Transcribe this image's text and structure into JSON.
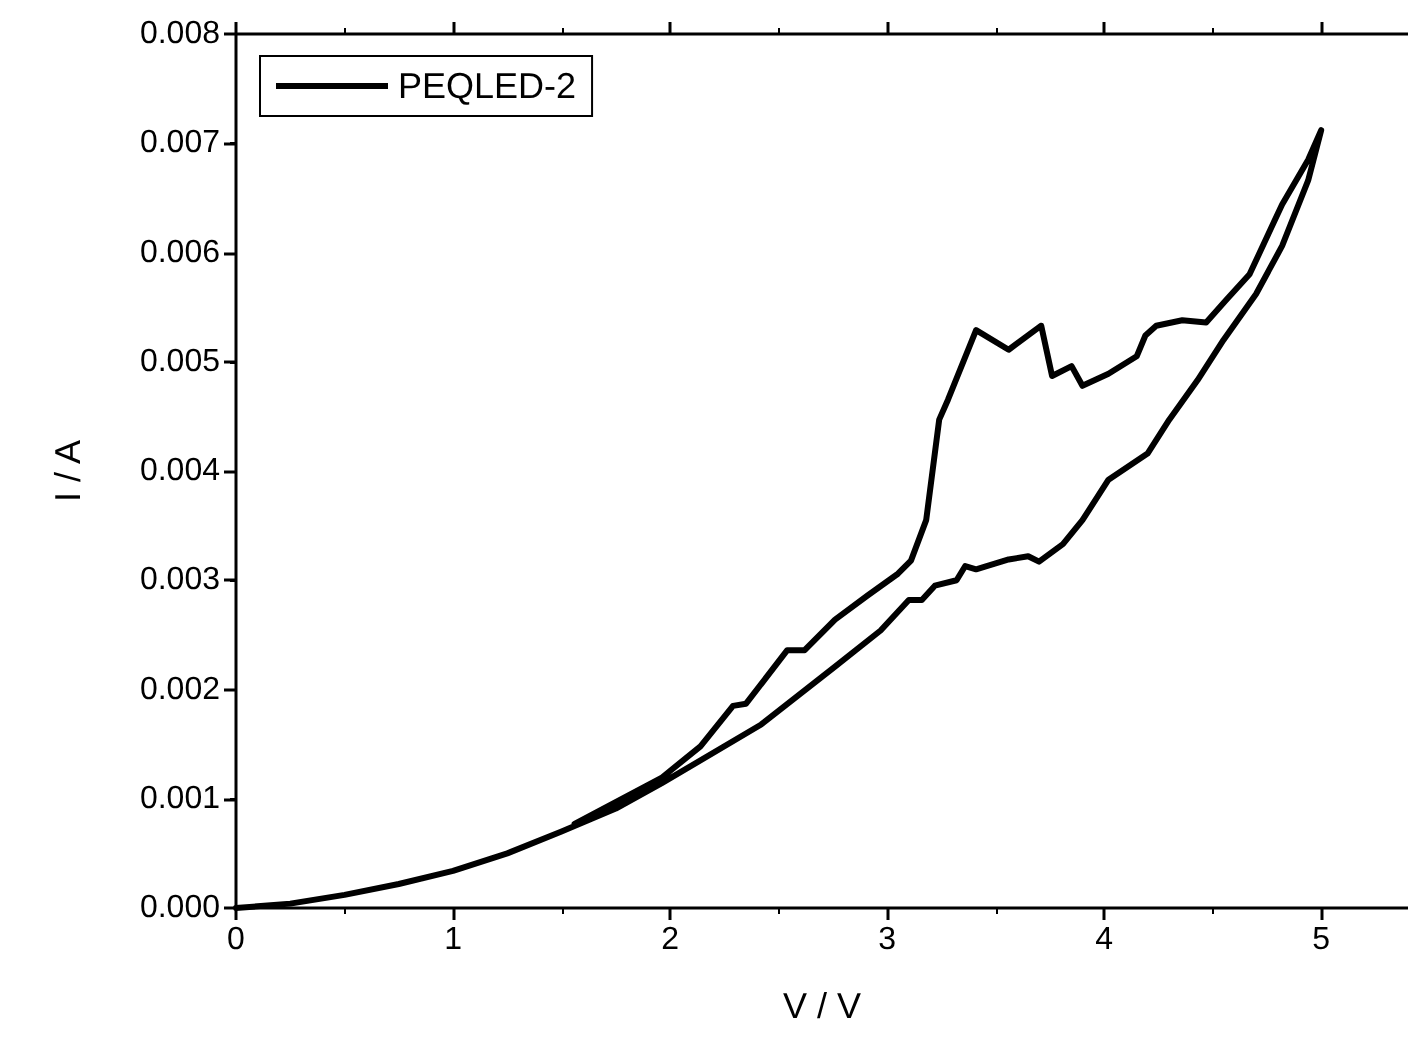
{
  "chart_data": {
    "type": "line",
    "xlabel": "V / V",
    "ylabel": "I / A",
    "xlim": [
      0,
      5.4
    ],
    "xticks": [
      0,
      1,
      2,
      3,
      4,
      5
    ],
    "ylim": [
      0,
      0.008
    ],
    "yticks": [
      {
        "value": 0,
        "label": "0.000"
      },
      {
        "value": 0.001,
        "label": "0.001"
      },
      {
        "value": 0.002,
        "label": "0.002"
      },
      {
        "value": 0.003,
        "label": "0.003"
      },
      {
        "value": 0.004,
        "label": "0.004"
      },
      {
        "value": 0.005,
        "label": "0.005"
      },
      {
        "value": 0.006,
        "label": "0.006"
      },
      {
        "value": 0.007,
        "label": "0.007"
      },
      {
        "value": 0.008,
        "label": "0.008"
      }
    ],
    "grid": false,
    "legend": "top left",
    "marker": "none",
    "line_style": "solid",
    "series": [
      {
        "name": "PEQLED-2",
        "color": "#000000",
        "x": [
          0,
          0.25,
          0.5,
          0.75,
          1,
          1.25,
          1.5,
          1.75,
          1.96,
          2.42,
          2.76,
          2.97,
          3.1,
          3.16,
          3.22,
          3.32,
          3.36,
          3.41,
          3.56,
          3.65,
          3.7,
          3.81,
          3.9,
          4.02,
          4.2,
          4.3,
          4.43,
          4.55,
          4.7,
          4.82,
          4.94,
          5.0,
          4.94,
          4.82,
          4.67,
          4.56,
          4.47,
          4.36,
          4.24,
          4.19,
          4.15,
          4.02,
          3.9,
          3.85,
          3.76,
          3.71,
          3.56,
          3.41,
          3.28,
          3.24,
          3.18,
          3.11,
          3.05,
          2.91,
          2.76,
          2.62,
          2.54,
          2.35,
          2.29,
          2.14,
          1.96,
          1.56
        ],
        "values": [
          0,
          4e-05,
          0.00012,
          0.00022,
          0.00034,
          0.0005,
          0.0007,
          0.00091,
          0.00114,
          0.00168,
          0.00221,
          0.00254,
          0.00282,
          0.00282,
          0.00295,
          0.003,
          0.00313,
          0.0031,
          0.00319,
          0.00322,
          0.00317,
          0.00333,
          0.00355,
          0.00392,
          0.00416,
          0.00447,
          0.00483,
          0.0052,
          0.00562,
          0.00606,
          0.00666,
          0.00712,
          0.00685,
          0.00644,
          0.0058,
          0.00556,
          0.00536,
          0.00538,
          0.00533,
          0.00524,
          0.00505,
          0.00489,
          0.00478,
          0.00496,
          0.00487,
          0.00533,
          0.00511,
          0.00529,
          0.00465,
          0.00447,
          0.00355,
          0.00318,
          0.00306,
          0.00286,
          0.00264,
          0.00236,
          0.00236,
          0.00187,
          0.00185,
          0.00148,
          0.00119,
          0.00077
        ]
      }
    ]
  }
}
